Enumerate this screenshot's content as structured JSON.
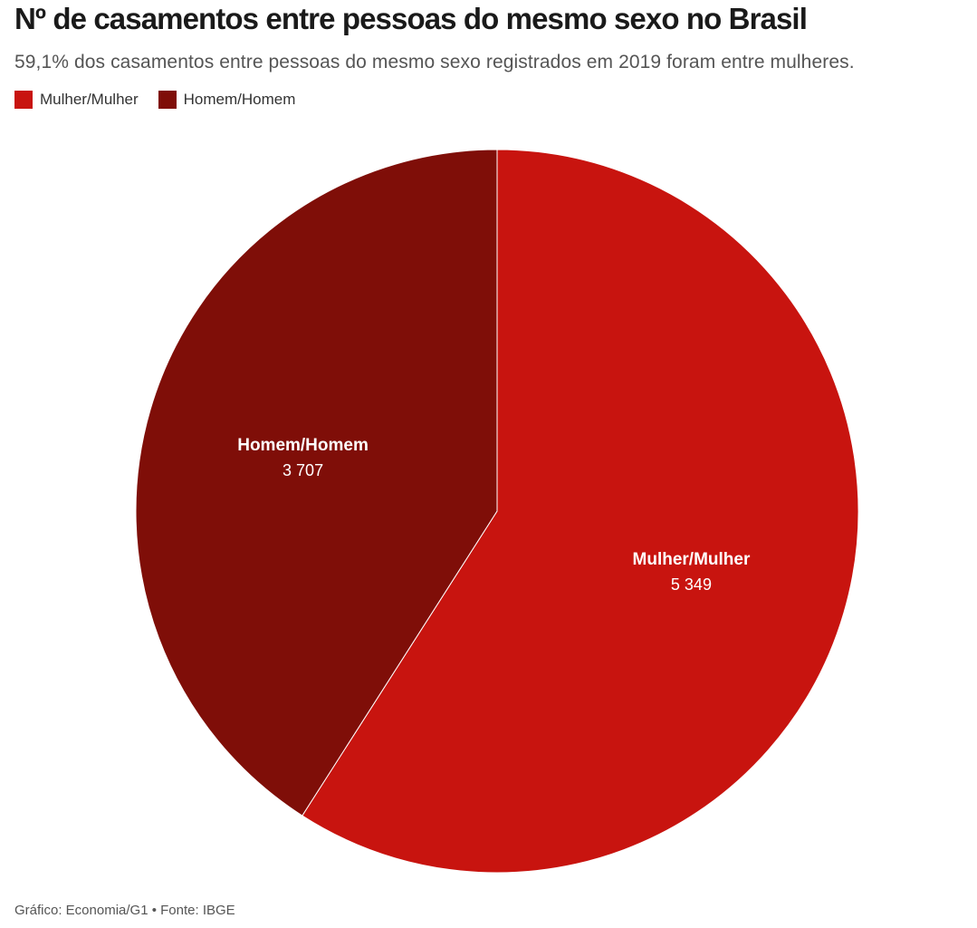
{
  "title": "Nº de casamentos entre pessoas do mesmo sexo no Brasil",
  "subtitle": "59,1% dos casamentos entre pessoas do mesmo sexo registrados em 2019 foram entre mulheres.",
  "legend": [
    {
      "label": "Mulher/Mulher",
      "color": "#c8140f"
    },
    {
      "label": "Homem/Homem",
      "color": "#7f0e08"
    }
  ],
  "source": "Gráfico: Economia/G1 • Fonte: IBGE",
  "chart_data": {
    "type": "pie",
    "title": "Nº de casamentos entre pessoas do mesmo sexo no Brasil",
    "subtitle": "59,1% dos casamentos entre pessoas do mesmo sexo registrados em 2019 foram entre mulheres.",
    "legend_position": "top-left",
    "slices": [
      {
        "label": "Mulher/Mulher",
        "value": 5349,
        "value_label": "5 349",
        "color": "#c8140f"
      },
      {
        "label": "Homem/Homem",
        "value": 3707,
        "value_label": "3 707",
        "color": "#7f0e08"
      }
    ]
  }
}
